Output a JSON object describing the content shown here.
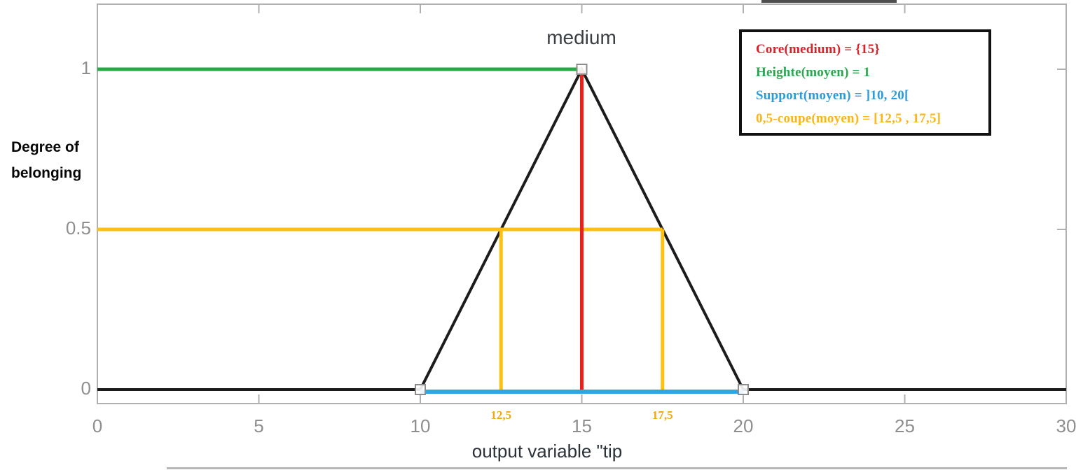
{
  "chart_data": {
    "type": "line",
    "title": "medium",
    "xlabel": "output variable \"tip",
    "ylabel_lines": [
      "Degree of",
      "belonging"
    ],
    "xlim": [
      0,
      30
    ],
    "ylim": [
      0,
      1
    ],
    "xticks": [
      0,
      5,
      10,
      15,
      20,
      25,
      30
    ],
    "yticks": [
      0,
      0.5,
      1
    ],
    "grid": false,
    "legend_position": "top-right",
    "series": [
      {
        "name": "membership-function-medium",
        "color": "#1c1c1c",
        "width": 4,
        "points": [
          [
            0,
            0
          ],
          [
            10,
            0
          ],
          [
            15,
            1
          ],
          [
            20,
            0
          ],
          [
            30,
            0
          ]
        ]
      },
      {
        "name": "height-line",
        "color": "#27a844",
        "width": 5,
        "points": [
          [
            0,
            1
          ],
          [
            15,
            1
          ]
        ]
      },
      {
        "name": "alpha-cut-horizontal",
        "color": "#fec011",
        "width": 5,
        "points": [
          [
            0,
            0.5
          ],
          [
            17.5,
            0.5
          ]
        ]
      },
      {
        "name": "alpha-cut-vertical-left",
        "color": "#fec011",
        "width": 5,
        "points": [
          [
            12.5,
            0.5
          ],
          [
            12.5,
            0
          ]
        ]
      },
      {
        "name": "alpha-cut-vertical-right",
        "color": "#fec011",
        "width": 5,
        "points": [
          [
            17.5,
            0.5
          ],
          [
            17.5,
            0
          ]
        ]
      },
      {
        "name": "support-line",
        "color": "#2ea7e0",
        "width": 6,
        "dy": 3,
        "points": [
          [
            10,
            0
          ],
          [
            20,
            0
          ]
        ]
      },
      {
        "name": "core-line",
        "color": "#e8211a",
        "width": 5,
        "points": [
          [
            15,
            0
          ],
          [
            15,
            1
          ]
        ]
      }
    ],
    "markers": {
      "shape": "open-square",
      "color": "#8c8c8c",
      "points": [
        [
          10,
          0
        ],
        [
          15,
          1
        ],
        [
          20,
          0
        ]
      ]
    },
    "annotations": {
      "alpha_left": {
        "text": "12,5",
        "x": 12.5
      },
      "alpha_right": {
        "text": "17,5",
        "x": 17.5
      },
      "color": "#f1a70e"
    },
    "legend": [
      {
        "text": "Core(medium) = {15}",
        "color": "#d6232b"
      },
      {
        "text": "Heighte(moyen) = 1",
        "color": "#2ca64e"
      },
      {
        "text": "Support(moyen) = ]10, 20[",
        "color": "#2b9cd8"
      },
      {
        "text": "0,5-coupe(moyen) = [12,5 , 17,5]",
        "color": "#fdb415"
      }
    ]
  }
}
